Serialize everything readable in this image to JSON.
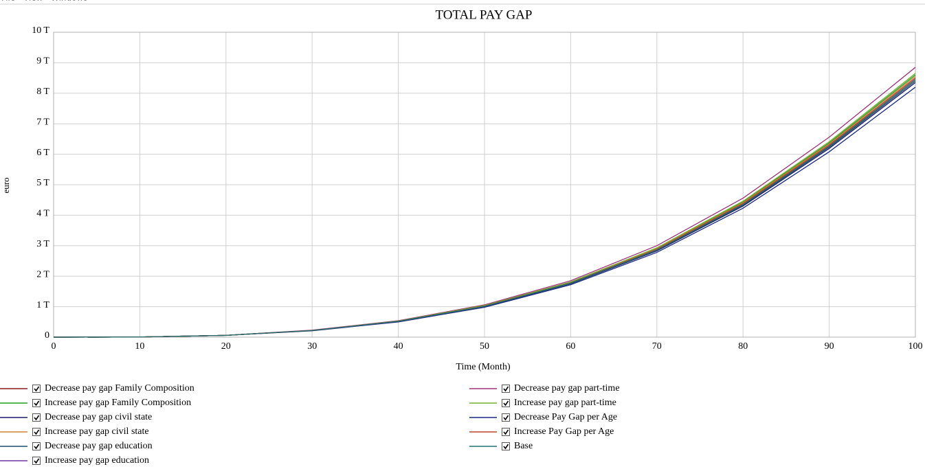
{
  "menu": [
    "File",
    "View",
    "Windows"
  ],
  "chart_data": {
    "type": "line",
    "title": "TOTAL PAY GAP",
    "x_label": "Time (Month)",
    "y_label": "euro",
    "x": [
      0,
      10,
      20,
      30,
      40,
      50,
      60,
      70,
      80,
      90,
      100
    ],
    "xlim": [
      0,
      100
    ],
    "xticks": [
      0,
      10,
      20,
      30,
      40,
      50,
      60,
      70,
      80,
      90,
      100
    ],
    "ylim": [
      0,
      10000000000000
    ],
    "yticks": [
      0,
      {
        "value": 1000000000000,
        "label": "1 T"
      },
      {
        "value": 2000000000000,
        "label": "2 T"
      },
      {
        "value": 3000000000000,
        "label": "3 T"
      },
      {
        "value": 4000000000000,
        "label": "4 T"
      },
      {
        "value": 5000000000000,
        "label": "5 T"
      },
      {
        "value": 6000000000000,
        "label": "6 T"
      },
      {
        "value": 7000000000000,
        "label": "7 T"
      },
      {
        "value": 8000000000000,
        "label": "8 T"
      },
      {
        "value": 9000000000000,
        "label": "9 T"
      },
      {
        "value": 10000000000000,
        "label": "10 T"
      }
    ],
    "grid": true,
    "series": [
      {
        "name": "Decrease pay gap Family Composition",
        "color": "#8b1a1a",
        "values": [
          0,
          5000000000.0,
          60000000000.0,
          220000000000.0,
          520000000000.0,
          1010000000000.0,
          1770000000000.0,
          2860000000000.0,
          4350000000000.0,
          6260000000000.0,
          8450000000000.0
        ]
      },
      {
        "name": "Increase pay gap Family Composition",
        "color": "#1e9e1e",
        "values": [
          0,
          5000000000.0,
          60000000000.0,
          220000000000.0,
          530000000000.0,
          1030000000000.0,
          1800000000000.0,
          2910000000000.0,
          4430000000000.0,
          6370000000000.0,
          8600000000000.0
        ]
      },
      {
        "name": "Decrease pay gap civil state",
        "color": "#1a1a6e",
        "values": [
          0,
          5000000000.0,
          60000000000.0,
          220000000000.0,
          510000000000.0,
          1000000000000.0,
          1750000000000.0,
          2830000000000.0,
          4300000000000.0,
          6190000000000.0,
          8350000000000.0
        ]
      },
      {
        "name": "Increase pay gap civil state",
        "color": "#d08030",
        "values": [
          0,
          5000000000.0,
          60000000000.0,
          220000000000.0,
          520000000000.0,
          1030000000000.0,
          1790000000000.0,
          2900000000000.0,
          4410000000000.0,
          6340000000000.0,
          8550000000000.0
        ]
      },
      {
        "name": "Decrease pay gap education",
        "color": "#1e4a6e",
        "values": [
          0,
          5000000000.0,
          60000000000.0,
          220000000000.0,
          510000000000.0,
          1010000000000.0,
          1760000000000.0,
          2850000000000.0,
          4330000000000.0,
          6230000000000.0,
          8400000000000.0
        ]
      },
      {
        "name": "Increase pay gap education",
        "color": "#7030a0",
        "values": [
          0,
          5000000000.0,
          60000000000.0,
          220000000000.0,
          520000000000.0,
          1020000000000.0,
          1780000000000.0,
          2880000000000.0,
          4380000000000.0,
          6300000000000.0,
          8500000000000.0
        ]
      },
      {
        "name": "Decrease pay gap part-time",
        "color": "#a0307a",
        "values": [
          0,
          5000000000.0,
          60000000000.0,
          230000000000.0,
          540000000000.0,
          1060000000000.0,
          1850000000000.0,
          3000000000000.0,
          4560000000000.0,
          6560000000000.0,
          8850000000000.0
        ]
      },
      {
        "name": "Increase pay gap part-time",
        "color": "#70b030",
        "values": [
          0,
          5000000000.0,
          60000000000.0,
          220000000000.0,
          530000000000.0,
          1040000000000.0,
          1810000000000.0,
          2930000000000.0,
          4460000000000.0,
          6410000000000.0,
          8650000000000.0
        ]
      },
      {
        "name": "Decrease Pay Gap per Age",
        "color": "#1a2a80",
        "values": [
          0,
          5000000000.0,
          60000000000.0,
          210000000000.0,
          500000000000.0,
          980000000000.0,
          1720000000000.0,
          2780000000000.0,
          4230000000000.0,
          6080000000000.0,
          8200000000000.0
        ]
      },
      {
        "name": "Increase Pay Gap per Age",
        "color": "#c04020",
        "values": [
          0,
          5000000000.0,
          60000000000.0,
          220000000000.0,
          520000000000.0,
          1020000000000.0,
          1780000000000.0,
          2880000000000.0,
          4380000000000.0,
          6300000000000.0,
          8500000000000.0
        ]
      },
      {
        "name": "Base",
        "color": "#207070",
        "values": [
          0,
          5000000000.0,
          60000000000.0,
          220000000000.0,
          520000000000.0,
          1010000000000.0,
          1770000000000.0,
          2860000000000.0,
          4350000000000.0,
          6260000000000.0,
          8450000000000.0
        ]
      }
    ]
  }
}
